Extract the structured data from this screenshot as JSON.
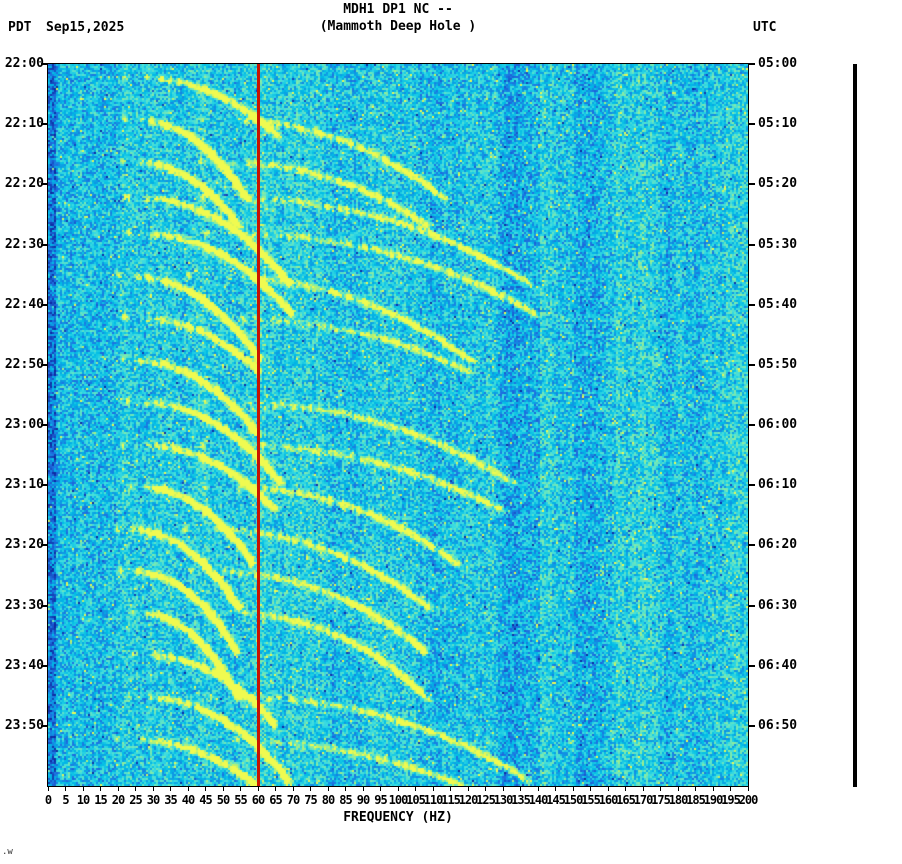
{
  "header": {
    "station_title": "MDH1 DP1 NC --",
    "station_subtitle": "(Mammoth Deep Hole )",
    "left_timezone": "PDT",
    "date": "Sep15,2025",
    "right_timezone": "UTC"
  },
  "footer_note": ".w",
  "chart_data": {
    "type": "heatmap",
    "subtype": "seismic-spectrogram",
    "title": "MDH1 DP1 NC -- (Mammoth Deep Hole )",
    "xlabel": "FREQUENCY (HZ)",
    "x_range_hz": [
      0,
      200
    ],
    "x_tick_step_hz": 5,
    "x_tick_labels": [
      "0",
      "5",
      "10",
      "15",
      "20",
      "25",
      "30",
      "35",
      "40",
      "45",
      "50",
      "55",
      "60",
      "65",
      "70",
      "75",
      "80",
      "85",
      "90",
      "95",
      "100",
      "105",
      "110",
      "115",
      "120",
      "125",
      "130",
      "135",
      "140",
      "145",
      "150",
      "155",
      "160",
      "165",
      "170",
      "175",
      "180",
      "185",
      "190",
      "195",
      "200"
    ],
    "time_span_minutes": 120,
    "left_axis_times_pdt": [
      "22:00",
      "22:10",
      "22:20",
      "22:30",
      "22:40",
      "22:50",
      "23:00",
      "23:10",
      "23:20",
      "23:30",
      "23:40",
      "23:50"
    ],
    "right_axis_times_utc": [
      "05:00",
      "05:10",
      "05:20",
      "05:30",
      "05:40",
      "05:50",
      "06:00",
      "06:10",
      "06:20",
      "06:30",
      "06:40",
      "06:50"
    ],
    "powerline_marker_hz": 60,
    "glide_events_minutes_after_start": [
      2,
      9,
      16,
      22,
      28,
      35,
      42,
      49,
      56,
      63,
      70,
      77,
      84,
      91,
      98,
      105,
      112
    ],
    "glide_fundamental_start_hz": 21,
    "glide_fundamental_end_hz": 62,
    "glide_harmonics": [
      1,
      2
    ],
    "grid": false,
    "legend": "none",
    "palette": {
      "deep_blue": "#1e6edc",
      "base_cyan": "#00bee6",
      "bright_arc": "#d8f060",
      "marker_red": "#c81400",
      "scale_bar_black": "#000000"
    },
    "description": "2-hour seismic spectrogram (22:00-24:00 PDT / 05:00-07:00 UTC), frequency 0-200 Hz. Cyan noise background with repeating upward-gliding harmonic arcs rising from ~20 Hz to ~60 Hz (2nd harmonics to ~125 Hz) roughly every 6-8 minutes, and a solid red 60 Hz powerline interference stripe."
  }
}
